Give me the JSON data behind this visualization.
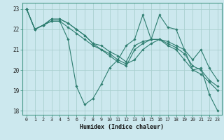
{
  "xlabel": "Humidex (Indice chaleur)",
  "bg_color": "#cce8ee",
  "line_color": "#2d7d6f",
  "grid_color": "#aacfcf",
  "xlim": [
    -0.5,
    23.5
  ],
  "ylim": [
    17.8,
    23.3
  ],
  "yticks": [
    18,
    19,
    20,
    21,
    22,
    23
  ],
  "xticks": [
    0,
    1,
    2,
    3,
    4,
    5,
    6,
    7,
    8,
    9,
    10,
    11,
    12,
    13,
    14,
    15,
    16,
    17,
    18,
    19,
    20,
    21,
    22,
    23
  ],
  "lines": [
    [
      23.0,
      22.0,
      22.2,
      22.4,
      22.4,
      21.5,
      19.2,
      18.3,
      18.6,
      19.3,
      20.1,
      20.5,
      21.2,
      21.5,
      22.7,
      21.5,
      22.7,
      22.1,
      22.0,
      21.0,
      20.0,
      20.1,
      18.8,
      18.0
    ],
    [
      23.0,
      22.0,
      22.2,
      22.5,
      22.5,
      22.3,
      22.0,
      21.7,
      21.3,
      21.0,
      20.7,
      20.4,
      20.2,
      21.0,
      21.3,
      21.5,
      21.5,
      21.4,
      21.2,
      21.0,
      20.5,
      21.0,
      20.1,
      19.5
    ],
    [
      23.0,
      22.0,
      22.2,
      22.5,
      22.5,
      22.3,
      22.0,
      21.7,
      21.3,
      21.2,
      20.9,
      20.7,
      20.4,
      21.2,
      21.4,
      21.5,
      21.5,
      21.3,
      21.1,
      20.8,
      20.2,
      20.0,
      19.5,
      19.2
    ],
    [
      23.0,
      22.0,
      22.2,
      22.4,
      22.4,
      22.1,
      21.8,
      21.5,
      21.2,
      21.0,
      20.8,
      20.5,
      20.3,
      20.5,
      21.0,
      21.3,
      21.5,
      21.2,
      21.0,
      20.5,
      20.0,
      19.8,
      19.4,
      19.0
    ]
  ]
}
